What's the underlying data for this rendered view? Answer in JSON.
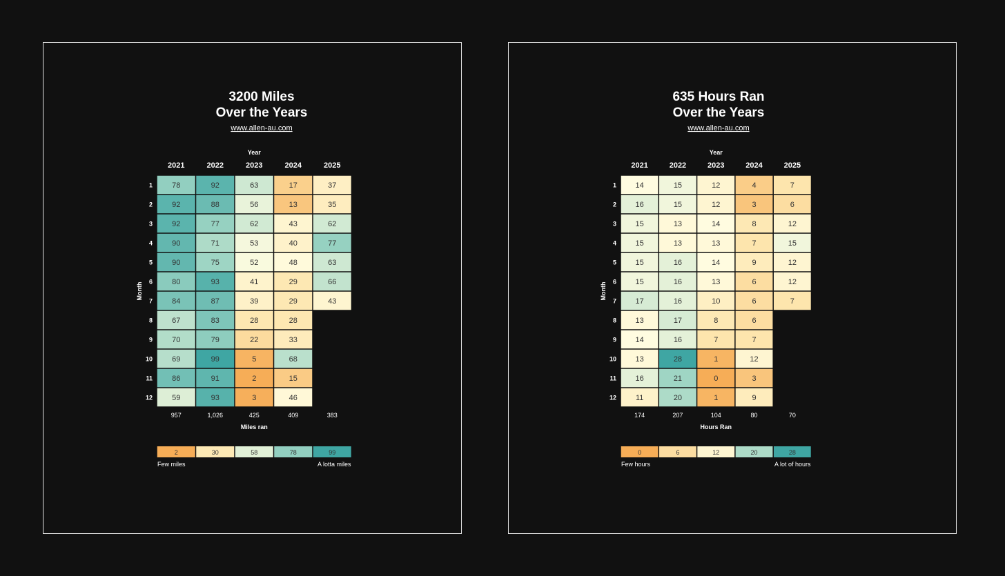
{
  "chart_data": [
    {
      "type": "heatmap",
      "title_lines": [
        "3200 Miles",
        "Over the Years"
      ],
      "subtitle": "www.allen-au.com",
      "x_header": "Year",
      "xlabel": "Miles ran",
      "ylabel": "Month",
      "years": [
        "2021",
        "2022",
        "2023",
        "2024",
        "2025"
      ],
      "months": [
        "1",
        "2",
        "3",
        "4",
        "5",
        "6",
        "7",
        "8",
        "9",
        "10",
        "11",
        "12"
      ],
      "values": [
        [
          78,
          92,
          63,
          17,
          37
        ],
        [
          92,
          88,
          56,
          13,
          35
        ],
        [
          92,
          77,
          62,
          43,
          62
        ],
        [
          90,
          71,
          53,
          40,
          77
        ],
        [
          90,
          75,
          52,
          48,
          63
        ],
        [
          80,
          93,
          41,
          29,
          66
        ],
        [
          84,
          87,
          39,
          29,
          43
        ],
        [
          67,
          83,
          28,
          28,
          null
        ],
        [
          70,
          79,
          22,
          33,
          null
        ],
        [
          69,
          99,
          5,
          68,
          null
        ],
        [
          86,
          91,
          2,
          15,
          null
        ],
        [
          59,
          93,
          3,
          46,
          null
        ]
      ],
      "totals": [
        "957",
        "1,026",
        "425",
        "409",
        "383"
      ],
      "vmin": 2,
      "vmax": 99,
      "legend": {
        "values": [
          "2",
          "30",
          "58",
          "78",
          "99"
        ],
        "low_label": "Few miles",
        "high_label": "A lotta miles"
      }
    },
    {
      "type": "heatmap",
      "title_lines": [
        "635 Hours Ran",
        "Over the Years"
      ],
      "subtitle": "www.allen-au.com",
      "x_header": "Year",
      "xlabel": "Hours Ran",
      "ylabel": "Month",
      "years": [
        "2021",
        "2022",
        "2023",
        "2024",
        "2025"
      ],
      "months": [
        "1",
        "2",
        "3",
        "4",
        "5",
        "6",
        "7",
        "8",
        "9",
        "10",
        "11",
        "12"
      ],
      "values": [
        [
          14,
          15,
          12,
          4,
          7
        ],
        [
          16,
          15,
          12,
          3,
          6
        ],
        [
          15,
          13,
          14,
          8,
          12
        ],
        [
          15,
          13,
          13,
          7,
          15
        ],
        [
          15,
          16,
          14,
          9,
          12
        ],
        [
          15,
          16,
          13,
          6,
          12
        ],
        [
          17,
          16,
          10,
          6,
          7
        ],
        [
          13,
          17,
          8,
          6,
          null
        ],
        [
          14,
          16,
          7,
          7,
          null
        ],
        [
          13,
          28,
          1,
          12,
          null
        ],
        [
          16,
          21,
          0,
          3,
          null
        ],
        [
          11,
          20,
          1,
          9,
          null
        ]
      ],
      "totals": [
        "174",
        "207",
        "104",
        "80",
        "70"
      ],
      "vmin": 0,
      "vmax": 28,
      "legend": {
        "values": [
          "0",
          "6",
          "12",
          "20",
          "28"
        ],
        "low_label": "Few hours",
        "high_label": "A lot of hours"
      }
    }
  ],
  "colors": {
    "background": "#111111",
    "border": "#e6e6e6",
    "scale": [
      "#f6ad57",
      "#fde5ad",
      "#fffce0",
      "#9fd5c4",
      "#3fa6a3"
    ],
    "cell_text": "#333333"
  }
}
